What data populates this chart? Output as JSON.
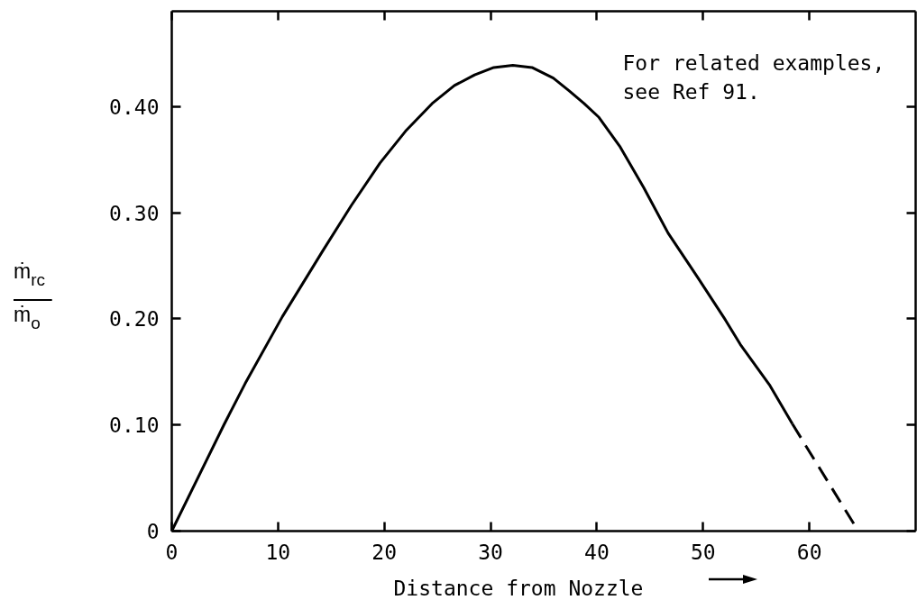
{
  "chart_data": {
    "type": "line",
    "xlabel": "Distance from Nozzle",
    "ylabel": "ṁ$_{rc}$\nṁ$_{o}$",
    "annotations": [
      "For related examples,\nsee Ref 91."
    ],
    "xlim": [
      0,
      70
    ],
    "ylim": [
      0,
      0.49
    ],
    "xticks": [
      0,
      10,
      20,
      30,
      40,
      50,
      60
    ],
    "yticks": [
      0,
      {
        "value": 0.1,
        "label": "0.10"
      },
      {
        "value": 0.2,
        "label": "0.20"
      },
      {
        "value": 0.3,
        "label": "0.30"
      },
      {
        "value": 0.4,
        "label": "0.40"
      }
    ],
    "series": [
      {
        "color": "#000000",
        "line_style": "solid",
        "x": [
          0,
          4.9,
          6.9,
          10.4,
          14.2,
          16.9,
          19.6,
          22.0,
          24.5,
          26.6,
          28.5,
          30.3,
          32.1,
          33.9,
          35.9,
          37.4,
          38.8,
          40.2,
          42.2,
          44.4,
          46.7,
          49.5,
          52.1,
          53.5,
          56.3,
          58.4
        ],
        "values": [
          0,
          0.1,
          0.139,
          0.202,
          0.264,
          0.307,
          0.347,
          0.377,
          0.403,
          0.42,
          0.43,
          0.437,
          0.439,
          0.437,
          0.427,
          0.415,
          0.403,
          0.39,
          0.362,
          0.324,
          0.281,
          0.239,
          0.199,
          0.176,
          0.137,
          0.101
        ]
      },
      {
        "color": "#000000",
        "line_style": "dashed",
        "x": [
          58.4,
          64.6
        ],
        "values": [
          0.101,
          0
        ]
      }
    ]
  }
}
